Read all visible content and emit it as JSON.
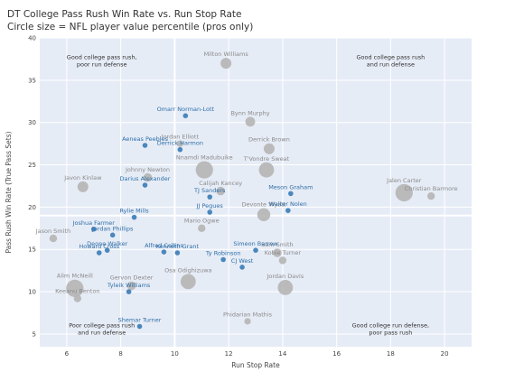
{
  "chart_data": {
    "type": "scatter",
    "title": "DT College Pass Rush Win Rate vs. Run Stop Rate",
    "subtitle": "Circle size = NFL player value percentile (pros only)",
    "xlabel": "Run Stop Rate",
    "ylabel": "Pass Rush Win Rate (True Pass Sets)",
    "xlim": [
      5,
      21
    ],
    "ylim": [
      3.5,
      40
    ],
    "xticks": [
      6,
      8,
      10,
      12,
      14,
      16,
      18,
      20
    ],
    "yticks": [
      5,
      10,
      15,
      20,
      25,
      30,
      35,
      40
    ],
    "reference_lines": {
      "x": 10,
      "y": 19
    },
    "grid": true,
    "colors": {
      "highlight": "#4a87bd",
      "pro": "#b5b5b5",
      "plot_background": "#e6ecf6",
      "gridline": "#ffffff",
      "highlight_label": "#2f6fa8",
      "pro_label": "#8a8a8a"
    },
    "quadrant_labels": [
      {
        "lines": [
          "Good college pass rush,",
          "poor run defense"
        ],
        "x": 7.3,
        "y": 37.5
      },
      {
        "lines": [
          "Good college pass rush",
          "and run defense"
        ],
        "x": 18,
        "y": 37.5
      },
      {
        "lines": [
          "Poor college pass rush",
          "and run defense"
        ],
        "x": 7.3,
        "y": 5.8
      },
      {
        "lines": [
          "Good college run defense,",
          "poor pass rush"
        ],
        "x": 18,
        "y": 5.8
      }
    ],
    "highlighted_prospects": [
      {
        "name": "Omarr Norman-Lott",
        "x": 10.4,
        "y": 30.8
      },
      {
        "name": "Aeneas Peebles",
        "x": 8.9,
        "y": 27.3
      },
      {
        "name": "Derrick Harmon",
        "x": 10.2,
        "y": 26.8
      },
      {
        "name": "Darius Alexander",
        "x": 8.9,
        "y": 22.6
      },
      {
        "name": "TJ Sanders",
        "x": 11.3,
        "y": 21.2
      },
      {
        "name": "Meson Graham",
        "x": 14.3,
        "y": 21.6
      },
      {
        "name": "JJ Pegues",
        "x": 11.3,
        "y": 19.4
      },
      {
        "name": "Walter Nolen",
        "x": 14.2,
        "y": 19.6
      },
      {
        "name": "Rylie Mills",
        "x": 8.5,
        "y": 18.8
      },
      {
        "name": "Joshua Farmer",
        "x": 7.0,
        "y": 17.4
      },
      {
        "name": "Jordan Phillips",
        "x": 7.7,
        "y": 16.7
      },
      {
        "name": "Howard Cross",
        "x": 7.2,
        "y": 14.6
      },
      {
        "name": "Deone Walker",
        "x": 7.5,
        "y": 14.9
      },
      {
        "name": "Alfred Collins",
        "x": 9.6,
        "y": 14.7
      },
      {
        "name": "Kenneth Grant",
        "x": 10.1,
        "y": 14.6
      },
      {
        "name": "Simeon Barrow",
        "x": 13.0,
        "y": 14.9
      },
      {
        "name": "Ty Robinson",
        "x": 11.8,
        "y": 13.8
      },
      {
        "name": "CJ West",
        "x": 12.5,
        "y": 12.9
      },
      {
        "name": "Tyleik Williams",
        "x": 8.3,
        "y": 10.0
      },
      {
        "name": "Shemar Turner",
        "x": 8.7,
        "y": 5.9
      }
    ],
    "pro_players": [
      {
        "name": "Milton Williams",
        "x": 11.9,
        "y": 37.0,
        "size": 3
      },
      {
        "name": "Bynn Murphy",
        "x": 12.8,
        "y": 30.1,
        "size": 2.5
      },
      {
        "name": "Jordan Elliott",
        "x": 10.2,
        "y": 27.5,
        "size": 1
      },
      {
        "name": "Derrick Brown",
        "x": 13.5,
        "y": 26.9,
        "size": 3
      },
      {
        "name": "Nnamdi Madubuike",
        "x": 11.1,
        "y": 24.4,
        "size": 6
      },
      {
        "name": "T'Vondre Sweat",
        "x": 13.4,
        "y": 24.4,
        "size": 5
      },
      {
        "name": "Johnny Newton",
        "x": 9.0,
        "y": 23.5,
        "size": 2
      },
      {
        "name": "Javon Kinlaw",
        "x": 6.6,
        "y": 22.4,
        "size": 3
      },
      {
        "name": "Calijah Kancey",
        "x": 11.7,
        "y": 21.9,
        "size": 2
      },
      {
        "name": "Jalen Carter",
        "x": 18.5,
        "y": 21.7,
        "size": 6
      },
      {
        "name": "Christian Barmore",
        "x": 19.5,
        "y": 21.3,
        "size": 1.5
      },
      {
        "name": "Mario Ogwe",
        "x": 11.0,
        "y": 17.5,
        "size": 1.5
      },
      {
        "name": "Devonte Wyatt",
        "x": 13.3,
        "y": 19.1,
        "size": 4
      },
      {
        "name": "Jason Smith",
        "x": 5.5,
        "y": 16.3,
        "size": 1.5
      },
      {
        "name": "Sam Smith",
        "x": 13.8,
        "y": 14.6,
        "size": 2
      },
      {
        "name": "Kobie Turner",
        "x": 14.0,
        "y": 13.7,
        "size": 1.5
      },
      {
        "name": "Jordan Davis",
        "x": 14.1,
        "y": 10.5,
        "size": 5
      },
      {
        "name": "Osa Odighizuwa",
        "x": 10.5,
        "y": 11.2,
        "size": 5
      },
      {
        "name": "Gervon Dexter",
        "x": 8.4,
        "y": 10.7,
        "size": 2
      },
      {
        "name": "Alim McNeill",
        "x": 6.3,
        "y": 10.4,
        "size": 6
      },
      {
        "name": "Keeanu Benton",
        "x": 6.4,
        "y": 9.2,
        "size": 1.5
      },
      {
        "name": "Phidarian Mathis",
        "x": 12.7,
        "y": 6.5,
        "size": 1
      }
    ]
  }
}
